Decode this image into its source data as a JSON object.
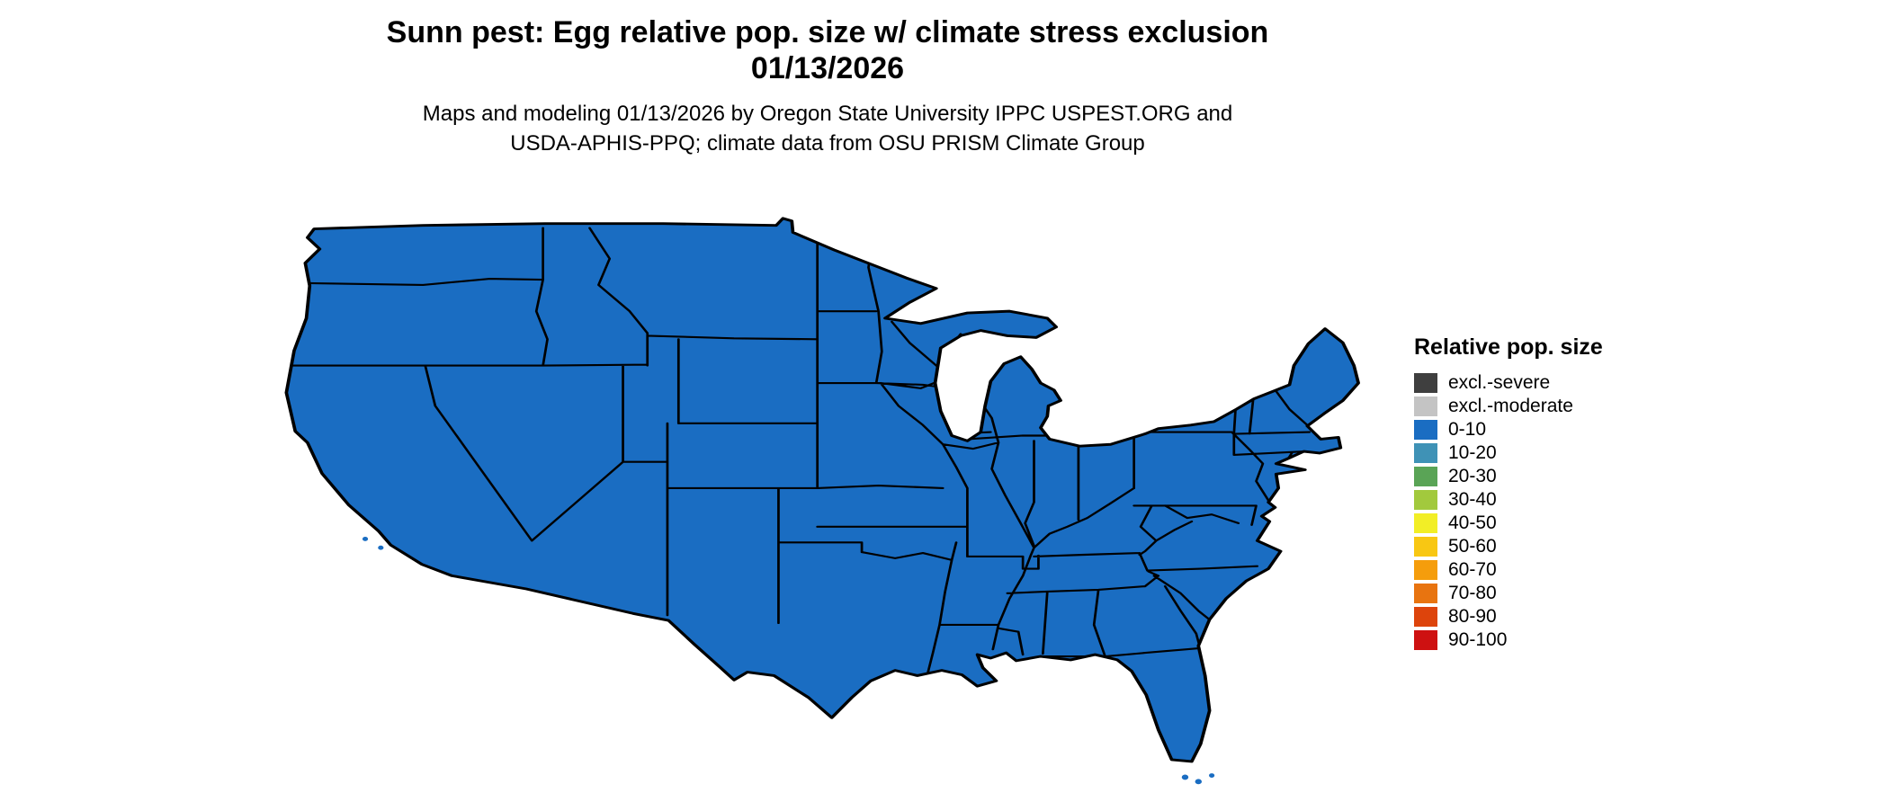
{
  "title": {
    "line1": "Sunn pest: Egg relative pop. size w/ climate stress exclusion",
    "line2": "01/13/2026"
  },
  "subtitle": {
    "line1": "Maps and modeling 01/13/2026 by Oregon State University IPPC USPEST.ORG and",
    "line2": "USDA-APHIS-PPQ; climate data from OSU PRISM Climate Group"
  },
  "map": {
    "region": "contiguous United States",
    "fill_color": "#1a6dc2",
    "border_color": "#000000",
    "all_states_class": "0-10",
    "description": "Choropleth of relative population size; every state shown in the 0-10 class (blue)"
  },
  "legend": {
    "title": "Relative pop. size",
    "items": [
      {
        "label": "excl.-severe",
        "color": "#3f3f3f"
      },
      {
        "label": "excl.-moderate",
        "color": "#c4c4c4"
      },
      {
        "label": "0-10",
        "color": "#1a6dc2"
      },
      {
        "label": "10-20",
        "color": "#3f92b6"
      },
      {
        "label": "20-30",
        "color": "#5aa456"
      },
      {
        "label": "30-40",
        "color": "#a2c93d"
      },
      {
        "label": "40-50",
        "color": "#f2ee26"
      },
      {
        "label": "50-60",
        "color": "#f8c713"
      },
      {
        "label": "60-70",
        "color": "#f59d0c"
      },
      {
        "label": "70-80",
        "color": "#e87410"
      },
      {
        "label": "80-90",
        "color": "#dd440c"
      },
      {
        "label": "90-100",
        "color": "#ce1111"
      }
    ]
  }
}
